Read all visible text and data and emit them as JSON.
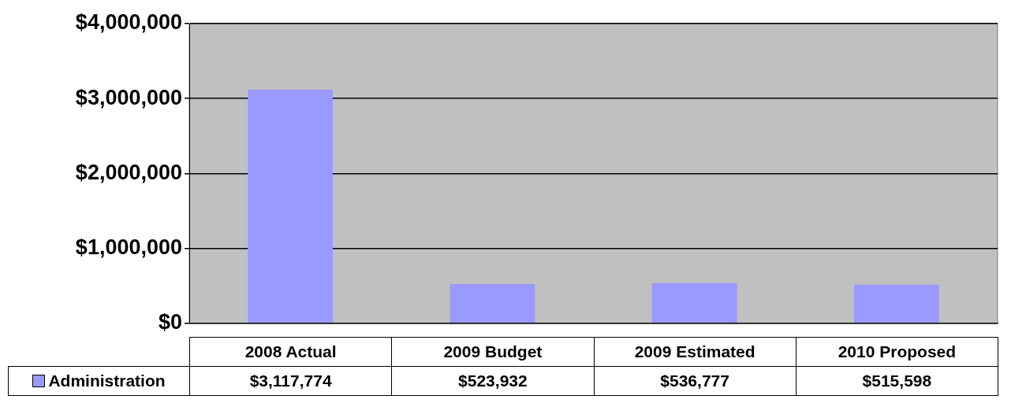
{
  "chart_data": {
    "type": "bar",
    "categories": [
      "2008 Actual",
      "2009 Budget",
      "2009 Estimated",
      "2010 Proposed"
    ],
    "series": [
      {
        "name": "Administration",
        "color": "#9999ff",
        "values": [
          3117774,
          523932,
          536777,
          515598
        ],
        "value_labels": [
          "$3,117,774",
          "$523,932",
          "$536,777",
          "$515,598"
        ]
      }
    ],
    "ylim": [
      0,
      4000000
    ],
    "yticks": [
      {
        "value": 0,
        "label": "$0"
      },
      {
        "value": 1000000,
        "label": "$1,000,000"
      },
      {
        "value": 2000000,
        "label": "$2,000,000"
      },
      {
        "value": 3000000,
        "label": "$3,000,000"
      },
      {
        "value": 4000000,
        "label": "$4,000,000"
      }
    ],
    "grid": "y",
    "legend": "bottom left"
  }
}
